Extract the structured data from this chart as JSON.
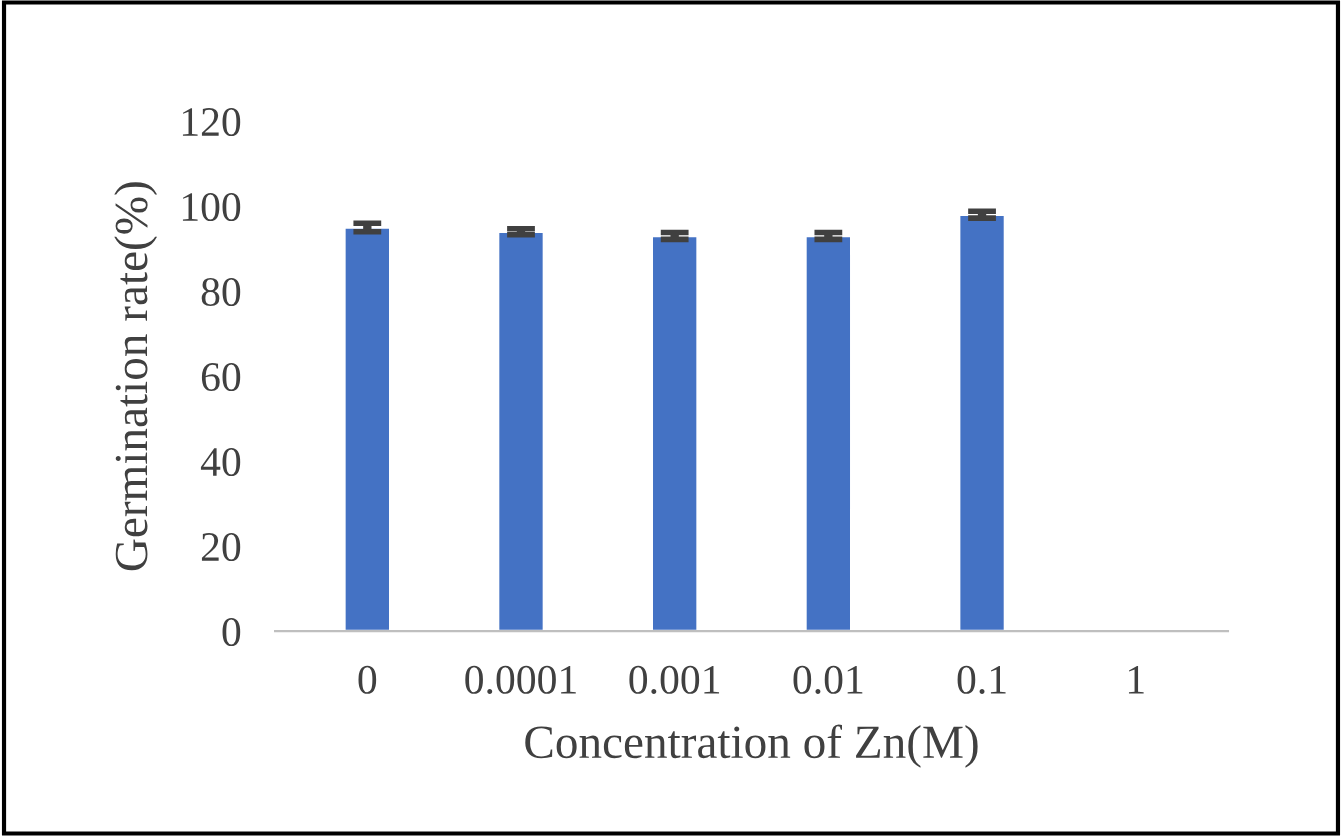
{
  "chart_data": {
    "type": "bar",
    "xlabel": "Concentration of Zn(M)",
    "ylabel": "Germination rate(%)",
    "categories": [
      "0",
      "0.0001",
      "0.001",
      "0.01",
      "0.1",
      "1"
    ],
    "values": [
      95,
      94,
      93,
      93,
      98,
      null
    ],
    "errors": [
      1,
      0.7,
      0.8,
      0.8,
      0.8,
      null
    ],
    "color": "#4472c4",
    "ylim": [
      0,
      120
    ],
    "yticks": [
      0,
      20,
      40,
      60,
      80,
      100,
      120
    ],
    "grid": false
  }
}
